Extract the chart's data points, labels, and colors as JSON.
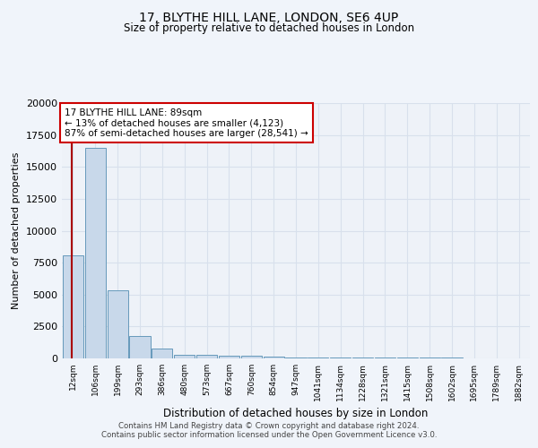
{
  "title1": "17, BLYTHE HILL LANE, LONDON, SE6 4UP",
  "title2": "Size of property relative to detached houses in London",
  "xlabel": "Distribution of detached houses by size in London",
  "ylabel": "Number of detached properties",
  "bar_labels": [
    "12sqm",
    "106sqm",
    "199sqm",
    "293sqm",
    "386sqm",
    "480sqm",
    "573sqm",
    "667sqm",
    "760sqm",
    "854sqm",
    "947sqm",
    "1041sqm",
    "1134sqm",
    "1228sqm",
    "1321sqm",
    "1415sqm",
    "1508sqm",
    "1602sqm",
    "1695sqm",
    "1789sqm",
    "1882sqm"
  ],
  "bar_heights": [
    8100,
    16500,
    5300,
    1750,
    750,
    300,
    250,
    200,
    200,
    150,
    100,
    80,
    70,
    60,
    55,
    50,
    45,
    40,
    35,
    30,
    25
  ],
  "bar_color": "#c8d8ea",
  "bar_edge_color": "#6699bb",
  "annotation_line1": "17 BLYTHE HILL LANE: 89sqm",
  "annotation_line2": "← 13% of detached houses are smaller (4,123)",
  "annotation_line3": "87% of semi-detached houses are larger (28,541) →",
  "annotation_box_color": "#ffffff",
  "annotation_border_color": "#cc0000",
  "red_line_color": "#aa0000",
  "footer_text": "Contains HM Land Registry data © Crown copyright and database right 2024.\nContains public sector information licensed under the Open Government Licence v3.0.",
  "ylim": [
    0,
    20000
  ],
  "background_color": "#f0f4fa",
  "plot_bg_color": "#eef2f8",
  "grid_color": "#d8e0ec"
}
